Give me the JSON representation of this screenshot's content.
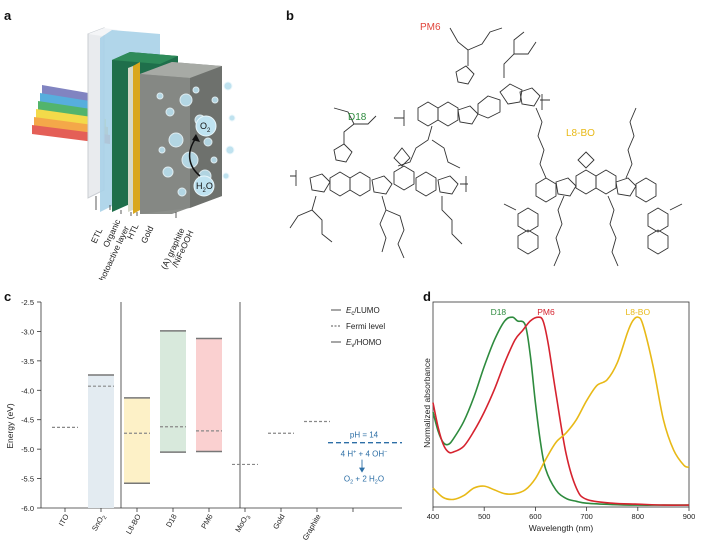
{
  "panels": {
    "a": "a",
    "b": "b",
    "c": "c",
    "d": "d"
  },
  "panel_a": {
    "bubble_o2": "O",
    "bubble_o2_sub": "2",
    "bubble_h2o": "H",
    "bubble_h2o_sub": "2",
    "bubble_h2o_tail": "O",
    "layer_labels": [
      "ETL",
      "Organic",
      "photoactive layer",
      "HTL",
      "Gold",
      "(A) graphite",
      "/NiFeOOH"
    ]
  },
  "panel_b": {
    "molecules": [
      {
        "name": "PM6",
        "color": "#e0443a"
      },
      {
        "name": "D18",
        "color": "#2e8b3e"
      },
      {
        "name": "L8-BO",
        "color": "#e8b917"
      }
    ]
  },
  "chart_data": [
    {
      "type": "bar",
      "panel": "c",
      "ylabel": "Energy (eV)",
      "ylim": [
        -6.0,
        -2.5
      ],
      "yticks": [
        "-2.5",
        "-3.0",
        "-3.5",
        "-4.0",
        "-4.5",
        "-5.0",
        "-5.5",
        "-6.0"
      ],
      "categories": [
        "ITO",
        "SnO2",
        "L8-BO",
        "D18",
        "PM6",
        "MoO3",
        "Gold",
        "Graphite"
      ],
      "category_labels": {
        "ITO": "ITO",
        "SnO2_main": "SnO",
        "SnO2_sub": "2",
        "L8-BO": "L8-BO",
        "D18": "D18",
        "PM6": "PM6",
        "MoO3_main": "MoO",
        "MoO3_sub": "3",
        "Gold": "Gold",
        "Graphite": "Graphite"
      },
      "bands": [
        {
          "category": "SnO2",
          "lumo": -3.74,
          "homo": -6.0,
          "fermi": -3.93,
          "color": "#e3ebf1"
        },
        {
          "category": "L8-BO",
          "lumo": -4.13,
          "homo": -5.58,
          "fermi": -4.73,
          "color": "#fdf1c7"
        },
        {
          "category": "D18",
          "lumo": -2.99,
          "homo": -5.05,
          "fermi": -4.62,
          "color": "#d8e9dc"
        },
        {
          "category": "PM6",
          "lumo": -3.12,
          "homo": -5.04,
          "fermi": -4.69,
          "color": "#fad0d0"
        }
      ],
      "fermi_only": [
        {
          "category": "ITO",
          "fermi": -4.63
        },
        {
          "category": "MoO3",
          "fermi": -5.26
        },
        {
          "category": "Gold",
          "fermi": -4.73
        },
        {
          "category": "Graphite",
          "fermi": -4.53
        }
      ],
      "legend": {
        "lumo": {
          "E": "E",
          "sub": "c",
          "tail": "/LUMO"
        },
        "fermi": "Fermi level",
        "homo": {
          "E": "E",
          "sub": "v",
          "tail": "/HOMO"
        }
      },
      "ph_line": {
        "value": -4.89,
        "label": "pH = 14",
        "reaction_left": "4 H",
        "reaction_left_sup": "+",
        "reaction_mid": " + 4 OH",
        "reaction_mid_sup": "−",
        "product_main": "O",
        "product_sub": "2",
        "product_tail": " + 2 H",
        "product_sub2": "2",
        "product_end": "O",
        "color": "#2d6fa6"
      }
    },
    {
      "type": "line",
      "panel": "d",
      "xlabel": "Wavelength (nm)",
      "ylabel": "Normalized absorbance",
      "xlim": [
        400,
        900
      ],
      "ylim": [
        0,
        1.08
      ],
      "xticks": [
        "400",
        "500",
        "600",
        "700",
        "800",
        "900"
      ],
      "series": [
        {
          "name": "D18",
          "color": "#2e8b3e",
          "x": [
            400,
            410,
            420,
            430,
            440,
            460,
            480,
            500,
            520,
            540,
            555,
            565,
            580,
            590,
            600,
            610,
            620,
            640,
            660,
            680,
            700,
            750,
            800,
            850,
            900
          ],
          "y": [
            0.5,
            0.4,
            0.34,
            0.33,
            0.36,
            0.45,
            0.58,
            0.74,
            0.88,
            0.98,
            1.0,
            0.98,
            0.96,
            0.8,
            0.55,
            0.34,
            0.2,
            0.09,
            0.045,
            0.03,
            0.02,
            0.013,
            0.01,
            0.01,
            0.01
          ]
        },
        {
          "name": "PM6",
          "color": "#d6232f",
          "x": [
            400,
            410,
            420,
            430,
            440,
            460,
            480,
            500,
            520,
            540,
            560,
            575,
            590,
            605,
            615,
            625,
            640,
            660,
            680,
            700,
            750,
            800,
            850,
            900
          ],
          "y": [
            0.55,
            0.42,
            0.33,
            0.29,
            0.29,
            0.32,
            0.4,
            0.5,
            0.62,
            0.76,
            0.88,
            0.93,
            0.98,
            1.0,
            0.98,
            0.86,
            0.6,
            0.28,
            0.1,
            0.04,
            0.02,
            0.015,
            0.01,
            0.01
          ]
        },
        {
          "name": "L8-BO",
          "color": "#e8b917",
          "x": [
            400,
            420,
            440,
            460,
            480,
            500,
            520,
            540,
            560,
            580,
            600,
            620,
            640,
            660,
            680,
            700,
            720,
            740,
            760,
            780,
            790,
            800,
            810,
            830,
            850,
            870,
            890,
            900
          ],
          "y": [
            0.1,
            0.05,
            0.04,
            0.06,
            0.1,
            0.11,
            0.09,
            0.07,
            0.07,
            0.09,
            0.15,
            0.25,
            0.34,
            0.39,
            0.46,
            0.56,
            0.64,
            0.67,
            0.76,
            0.92,
            0.98,
            1.0,
            0.96,
            0.74,
            0.46,
            0.3,
            0.22,
            0.21
          ]
        }
      ],
      "series_labels": [
        {
          "name": "D18"
        },
        {
          "name": "PM6"
        },
        {
          "name": "L8-BO"
        }
      ]
    }
  ]
}
